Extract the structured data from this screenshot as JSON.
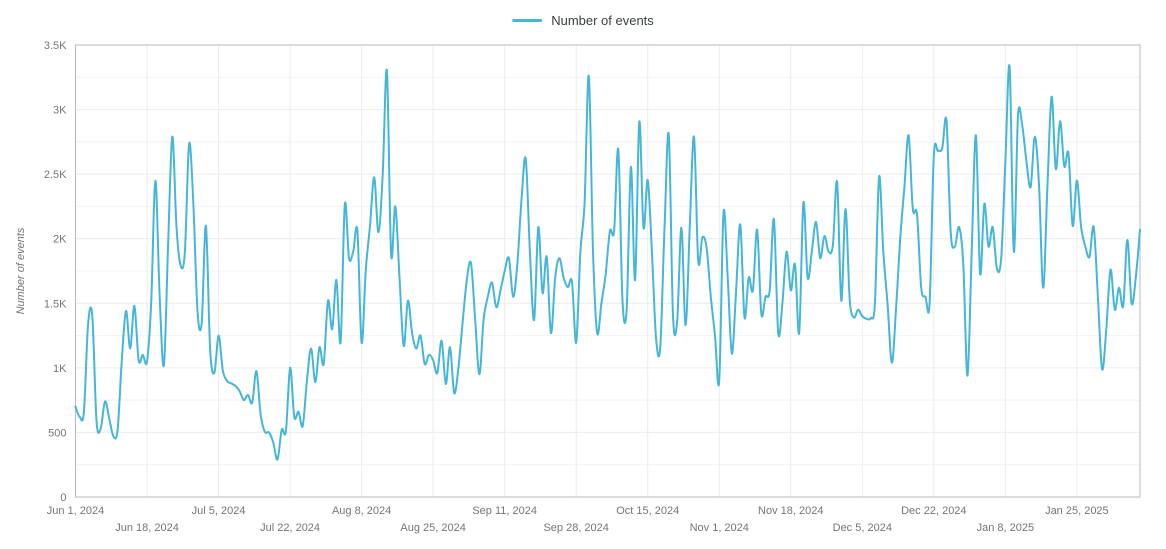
{
  "legend": {
    "label": "Number of events"
  },
  "colors": {
    "line": "#45b6d8",
    "grid_major": "#ececec",
    "grid_minor": "#f4f2f2",
    "border": "#b9b9b9",
    "tick_text": "#757575",
    "legend_text": "#3c4043",
    "background": "#ffffff"
  },
  "y_axis": {
    "title": "Number of events",
    "tick_labels": [
      "0",
      "500",
      "1K",
      "1.5K",
      "2K",
      "2.5K",
      "3K",
      "3.5K"
    ],
    "tick_values": [
      0,
      500,
      1000,
      1500,
      2000,
      2500,
      3000,
      3500
    ],
    "minor_step": 250,
    "range": [
      0,
      3500
    ]
  },
  "x_axis": {
    "ticks": [
      {
        "day": 0,
        "label": "Jun 1, 2024",
        "row": 1
      },
      {
        "day": 17,
        "label": "Jun 18, 2024",
        "row": 2
      },
      {
        "day": 34,
        "label": "Jul 5, 2024",
        "row": 1
      },
      {
        "day": 51,
        "label": "Jul 22, 2024",
        "row": 2
      },
      {
        "day": 68,
        "label": "Aug 8, 2024",
        "row": 1
      },
      {
        "day": 85,
        "label": "Aug 25, 2024",
        "row": 2
      },
      {
        "day": 102,
        "label": "Sep 11, 2024",
        "row": 1
      },
      {
        "day": 119,
        "label": "Sep 28, 2024",
        "row": 2
      },
      {
        "day": 136,
        "label": "Oct 15, 2024",
        "row": 1
      },
      {
        "day": 153,
        "label": "Nov 1, 2024",
        "row": 2
      },
      {
        "day": 170,
        "label": "Nov 18, 2024",
        "row": 1
      },
      {
        "day": 187,
        "label": "Dec 5, 2024",
        "row": 2
      },
      {
        "day": 204,
        "label": "Dec 22, 2024",
        "row": 1
      },
      {
        "day": 221,
        "label": "Jan 8, 2025",
        "row": 2
      },
      {
        "day": 238,
        "label": "Jan 25, 2025",
        "row": 1
      }
    ]
  },
  "chart_data": {
    "type": "line",
    "title": "Number of events",
    "xlabel": "",
    "ylabel": "Number of events",
    "x_unit": "day",
    "start_date": "Jun 1, 2024",
    "end_date": "Feb 9, 2025",
    "ylim": [
      0,
      3500
    ],
    "grid": true,
    "legend_position": "top-center",
    "series": [
      {
        "name": "Number of events",
        "color": "#45b6d8",
        "values": [
          700,
          620,
          660,
          1340,
          1400,
          590,
          530,
          740,
          610,
          470,
          520,
          1060,
          1440,
          1150,
          1480,
          1060,
          1100,
          1050,
          1510,
          2450,
          1550,
          1020,
          1950,
          2790,
          2090,
          1790,
          1900,
          2735,
          2280,
          1440,
          1350,
          2100,
          1150,
          960,
          1250,
          980,
          900,
          880,
          860,
          820,
          750,
          790,
          730,
          975,
          640,
          505,
          500,
          420,
          290,
          520,
          510,
          1000,
          620,
          660,
          550,
          900,
          1150,
          890,
          1160,
          1030,
          1520,
          1300,
          1680,
          1200,
          2265,
          1850,
          1900,
          2060,
          1195,
          1760,
          2100,
          2475,
          2050,
          2480,
          3300,
          1880,
          2250,
          1700,
          1170,
          1520,
          1270,
          1150,
          1250,
          1030,
          1100,
          1060,
          960,
          1210,
          875,
          1160,
          805,
          1000,
          1350,
          1680,
          1810,
          1370,
          950,
          1375,
          1550,
          1660,
          1470,
          1600,
          1750,
          1850,
          1550,
          1800,
          2300,
          2620,
          1900,
          1370,
          2090,
          1580,
          1860,
          1270,
          1700,
          1850,
          1700,
          1625,
          1665,
          1195,
          1900,
          2280,
          3260,
          1900,
          1270,
          1500,
          1720,
          2060,
          2060,
          2690,
          1520,
          1460,
          2555,
          1680,
          2905,
          2085,
          2455,
          1900,
          1225,
          1165,
          2100,
          2805,
          1405,
          1365,
          2085,
          1330,
          2100,
          2790,
          1830,
          2010,
          1930,
          1550,
          1250,
          900,
          2200,
          1700,
          1110,
          1600,
          2110,
          1390,
          1700,
          1600,
          2070,
          1420,
          1550,
          1600,
          2150,
          1270,
          1500,
          1900,
          1600,
          1800,
          1270,
          2280,
          1700,
          1900,
          2130,
          1850,
          2020,
          1900,
          1950,
          2440,
          1520,
          2230,
          1530,
          1390,
          1450,
          1400,
          1380,
          1385,
          1500,
          2480,
          1900,
          1500,
          1040,
          1450,
          2000,
          2400,
          2800,
          2230,
          2190,
          1620,
          1550,
          1500,
          2640,
          2680,
          2700,
          2915,
          2050,
          1940,
          2090,
          1800,
          940,
          1900,
          2800,
          1730,
          2270,
          1940,
          2090,
          1770,
          1850,
          2600,
          3330,
          1900,
          2950,
          2880,
          2600,
          2400,
          2790,
          2420,
          1620,
          2400,
          3100,
          2540,
          2910,
          2560,
          2660,
          2100,
          2450,
          2090,
          1940,
          1860,
          2090,
          1550,
          990,
          1300,
          1760,
          1450,
          1620,
          1480,
          1990,
          1500,
          1700,
          2070
        ]
      }
    ]
  }
}
